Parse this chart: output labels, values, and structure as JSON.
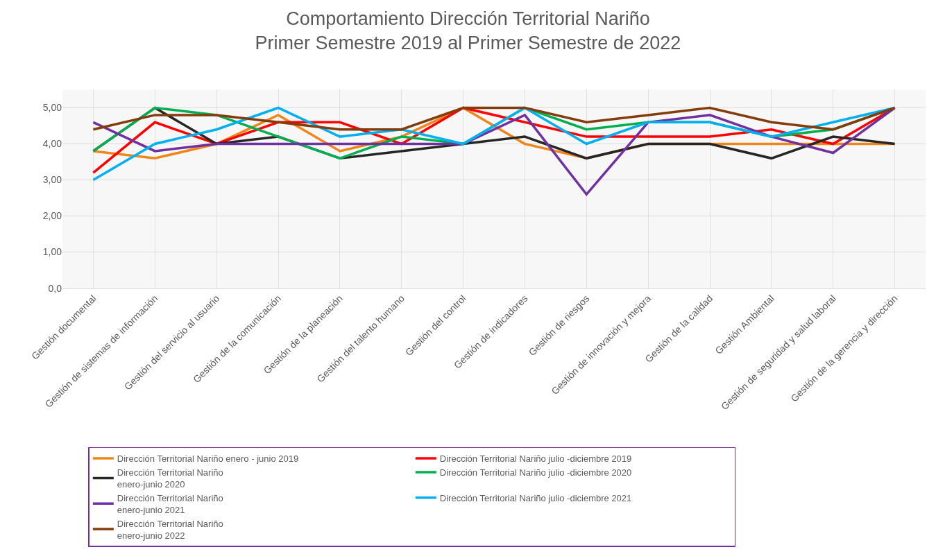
{
  "chart_data": {
    "type": "line",
    "title": "Comportamiento Dirección Territorial Nariño\nPrimer Semestre 2019 al Primer Semestre de 2022",
    "categories": [
      "Gestión documental",
      "Gestión de sistemas de información",
      "Gestión del servicio al usuario",
      "Gestión de la comunicación",
      "Gestión de la planeación",
      "Gestión del talento humano",
      "Gestión del control",
      "Gestión de indicadores",
      "Gestión de riesgos",
      "Gestión de innovación y mejora",
      "Gestión de la calidad",
      "Gestión Ambiental",
      "Gestión de seguridad y salud laboral",
      "Gestión de la gerencia y dirección"
    ],
    "series": [
      {
        "name": "Dirección Territorial Nariño enero - junio 2019",
        "color": "#f08519",
        "values": [
          3.8,
          3.6,
          4.0,
          4.8,
          3.8,
          4.2,
          5.0,
          4.0,
          3.6,
          4.0,
          4.0,
          4.0,
          4.0,
          4.0
        ]
      },
      {
        "name": "Dirección Territorial Nariño julio -diciembre 2019",
        "color": "#ff0000",
        "values": [
          3.2,
          4.6,
          4.0,
          4.6,
          4.6,
          4.0,
          5.0,
          4.6,
          4.2,
          4.2,
          4.2,
          4.4,
          4.0,
          5.0
        ]
      },
      {
        "name": "Dirección Territorial Nariño\nenero-junio 2020",
        "color": "#262626",
        "values": [
          3.8,
          5.0,
          4.0,
          4.2,
          3.6,
          3.8,
          4.0,
          4.2,
          3.6,
          4.0,
          4.0,
          3.6,
          4.2,
          4.0
        ]
      },
      {
        "name": "Dirección Territorial Nariño julio -diciembre 2020",
        "color": "#00b050",
        "values": [
          3.8,
          5.0,
          4.8,
          4.2,
          3.6,
          4.2,
          4.0,
          5.0,
          4.4,
          4.6,
          4.6,
          4.2,
          4.4,
          5.0
        ]
      },
      {
        "name": "Dirección Territorial Nariño\nenero-junio 2021",
        "color": "#7030a0",
        "values": [
          4.6,
          3.8,
          4.0,
          4.0,
          4.0,
          4.0,
          4.0,
          4.8,
          2.6,
          4.6,
          4.8,
          4.2,
          3.75,
          5.0
        ]
      },
      {
        "name": "Dirección Territorial Nariño julio -diciembre 2021",
        "color": "#00b0f0",
        "values": [
          3.0,
          4.0,
          4.4,
          5.0,
          4.2,
          4.4,
          4.0,
          5.0,
          4.0,
          4.6,
          4.6,
          4.2,
          4.6,
          5.0
        ]
      },
      {
        "name": "Dirección Territorial Nariño\nenero-junio 2022",
        "color": "#843c0c",
        "values": [
          4.4,
          4.8,
          4.8,
          4.6,
          4.4,
          4.4,
          5.0,
          5.0,
          4.6,
          4.8,
          5.0,
          4.6,
          4.4,
          5.0
        ]
      }
    ],
    "ylim": [
      0,
      5.5
    ],
    "yticks": [
      {
        "value": 0,
        "label": "0,0"
      },
      {
        "value": 1,
        "label": "1,00"
      },
      {
        "value": 2,
        "label": "2,00"
      },
      {
        "value": 3,
        "label": "3,00"
      },
      {
        "value": 4,
        "label": "4,00"
      },
      {
        "value": 5,
        "label": "5,00"
      }
    ],
    "grid": true,
    "legend": "bottom",
    "marker": "none",
    "line_style": "solid"
  }
}
